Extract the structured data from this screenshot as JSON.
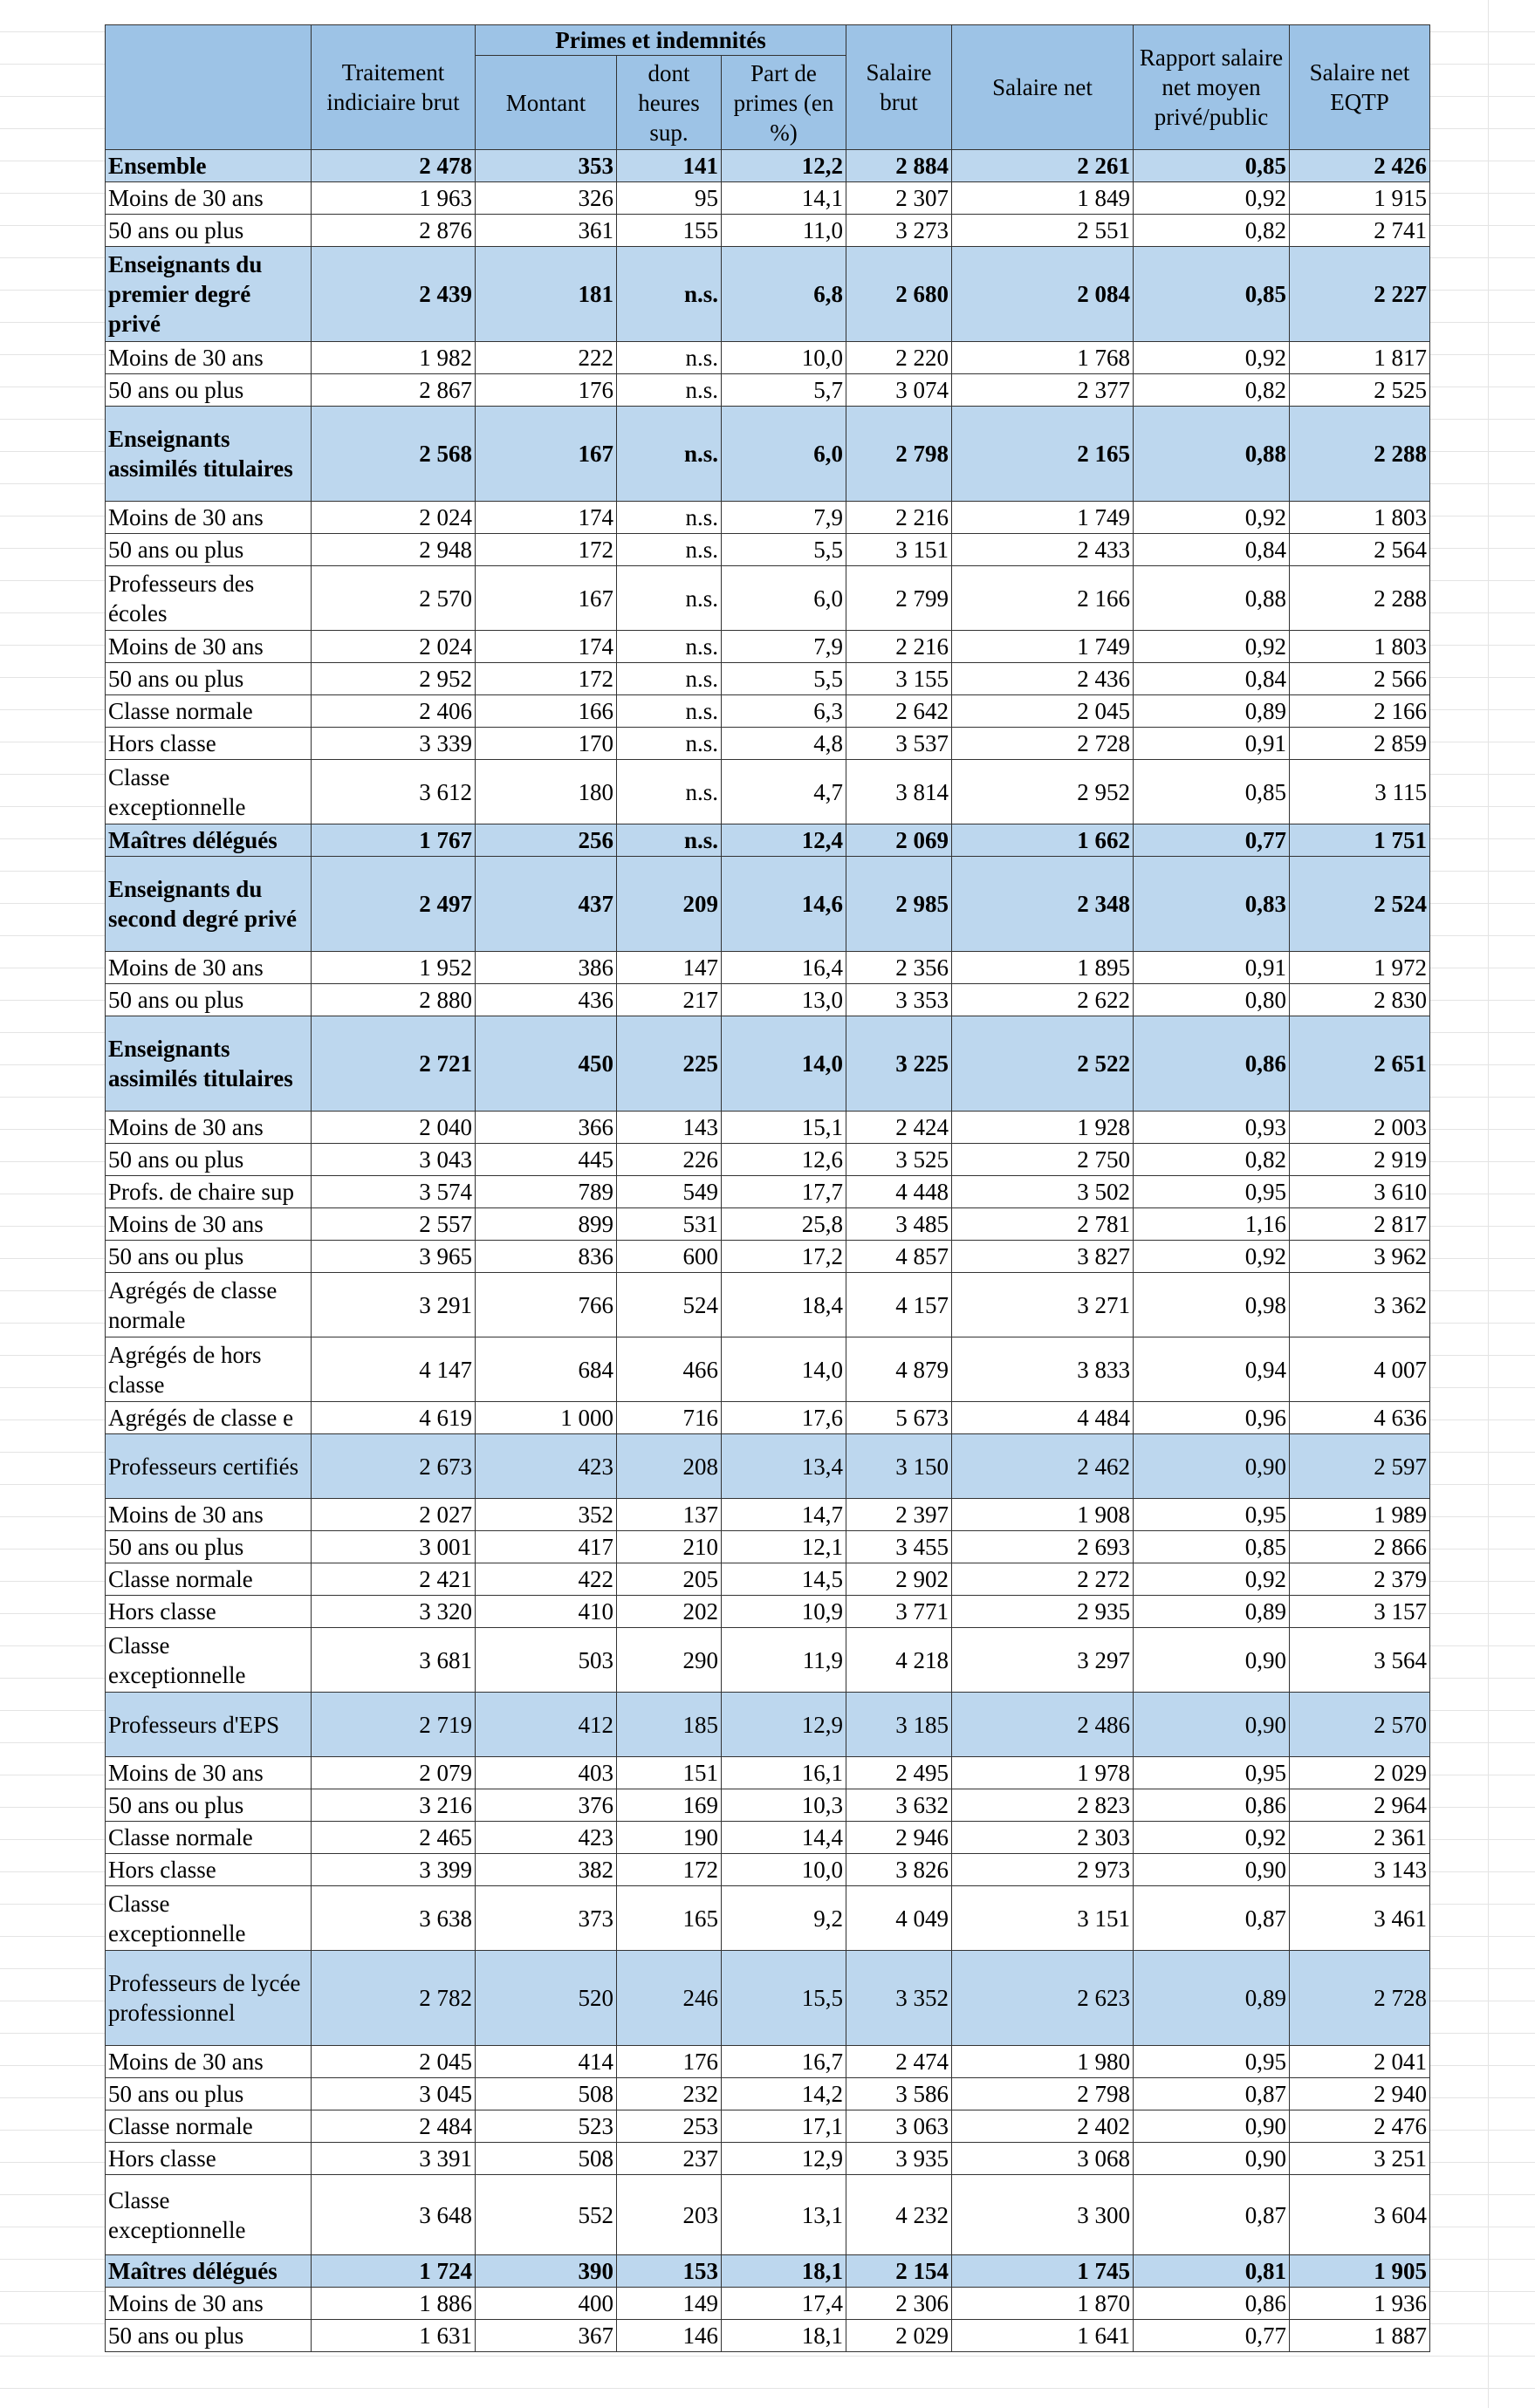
{
  "header": {
    "traitement": "Traitement indiciaire brut",
    "primes": "Primes et indemnités",
    "montant": "Montant",
    "heures": "dont heures sup.",
    "part": "Part de primes (en %)",
    "brut": "Salaire brut",
    "net": "Salaire net",
    "rapport": "Rapport salaire net moyen privé/public",
    "eqtp": "Salaire net EQTP"
  },
  "table": {
    "rows": [
      [
        "Ensemble",
        "2 478",
        "353",
        "141",
        "12,2",
        "2 884",
        "2 261",
        "0,85",
        "2 426"
      ],
      [
        "Moins de 30 ans",
        "1 963",
        "326",
        "95",
        "14,1",
        "2 307",
        "1 849",
        "0,92",
        "1 915"
      ],
      [
        "50 ans ou plus",
        "2 876",
        "361",
        "155",
        "11,0",
        "3 273",
        "2 551",
        "0,82",
        "2 741"
      ],
      [
        "Enseignants du premier degré privé",
        "2 439",
        "181",
        "n.s.",
        "6,8",
        "2 680",
        "2 084",
        "0,85",
        "2 227"
      ],
      [
        "Moins de 30 ans",
        "1 982",
        "222",
        "n.s.",
        "10,0",
        "2 220",
        "1 768",
        "0,92",
        "1 817"
      ],
      [
        "50 ans ou plus",
        "2 867",
        "176",
        "n.s.",
        "5,7",
        "3 074",
        "2 377",
        "0,82",
        "2 525"
      ],
      [
        "Enseignants assimilés titulaires",
        "2 568",
        "167",
        "n.s.",
        "6,0",
        "2 798",
        "2 165",
        "0,88",
        "2 288"
      ],
      [
        "Moins de 30 ans",
        "2 024",
        "174",
        "n.s.",
        "7,9",
        "2 216",
        "1 749",
        "0,92",
        "1 803"
      ],
      [
        "50 ans ou plus",
        "2 948",
        "172",
        "n.s.",
        "5,5",
        "3 151",
        "2 433",
        "0,84",
        "2 564"
      ],
      [
        "Professeurs des écoles",
        "2 570",
        "167",
        "n.s.",
        "6,0",
        "2 799",
        "2 166",
        "0,88",
        "2 288"
      ],
      [
        "Moins de 30 ans",
        "2 024",
        "174",
        "n.s.",
        "7,9",
        "2 216",
        "1 749",
        "0,92",
        "1 803"
      ],
      [
        "50 ans ou plus",
        "2 952",
        "172",
        "n.s.",
        "5,5",
        "3 155",
        "2 436",
        "0,84",
        "2 566"
      ],
      [
        "Classe normale",
        "2 406",
        "166",
        "n.s.",
        "6,3",
        "2 642",
        "2 045",
        "0,89",
        "2 166"
      ],
      [
        "Hors classe",
        "3 339",
        "170",
        "n.s.",
        "4,8",
        "3 537",
        "2 728",
        "0,91",
        "2 859"
      ],
      [
        "Classe exceptionnelle",
        "3 612",
        "180",
        "n.s.",
        "4,7",
        "3 814",
        "2 952",
        "0,85",
        "3 115"
      ],
      [
        "Maîtres délégués",
        "1 767",
        "256",
        "n.s.",
        "12,4",
        "2 069",
        "1 662",
        "0,77",
        "1 751"
      ],
      [
        "Enseignants du second degré privé",
        "2 497",
        "437",
        "209",
        "14,6",
        "2 985",
        "2 348",
        "0,83",
        "2 524"
      ],
      [
        "Moins de 30 ans",
        "1 952",
        "386",
        "147",
        "16,4",
        "2 356",
        "1 895",
        "0,91",
        "1 972"
      ],
      [
        "50 ans ou plus",
        "2 880",
        "436",
        "217",
        "13,0",
        "3 353",
        "2 622",
        "0,80",
        "2 830"
      ],
      [
        "Enseignants assimilés titulaires",
        "2 721",
        "450",
        "225",
        "14,0",
        "3 225",
        "2 522",
        "0,86",
        "2 651"
      ],
      [
        "Moins de 30 ans",
        "2 040",
        "366",
        "143",
        "15,1",
        "2 424",
        "1 928",
        "0,93",
        "2 003"
      ],
      [
        "50 ans ou plus",
        "3 043",
        "445",
        "226",
        "12,6",
        "3 525",
        "2 750",
        "0,82",
        "2 919"
      ],
      [
        "Profs. de chaire sup",
        "3 574",
        "789",
        "549",
        "17,7",
        "4 448",
        "3 502",
        "0,95",
        "3 610"
      ],
      [
        "Moins de 30 ans",
        "2 557",
        "899",
        "531",
        "25,8",
        "3 485",
        "2 781",
        "1,16",
        "2 817"
      ],
      [
        "50 ans ou plus",
        "3 965",
        "836",
        "600",
        "17,2",
        "4 857",
        "3 827",
        "0,92",
        "3 962"
      ],
      [
        "Agrégés de classe normale",
        "3 291",
        "766",
        "524",
        "18,4",
        "4 157",
        "3 271",
        "0,98",
        "3 362"
      ],
      [
        "Agrégés de hors classe",
        "4 147",
        "684",
        "466",
        "14,0",
        "4 879",
        "3 833",
        "0,94",
        "4 007"
      ],
      [
        "Agrégés de classe e",
        "4 619",
        "1 000",
        "716",
        "17,6",
        "5 673",
        "4 484",
        "0,96",
        "4 636"
      ],
      [
        "Professeurs certifiés",
        "2 673",
        "423",
        "208",
        "13,4",
        "3 150",
        "2 462",
        "0,90",
        "2 597"
      ],
      [
        "Moins de 30 ans",
        "2 027",
        "352",
        "137",
        "14,7",
        "2 397",
        "1 908",
        "0,95",
        "1 989"
      ],
      [
        "50 ans ou plus",
        "3 001",
        "417",
        "210",
        "12,1",
        "3 455",
        "2 693",
        "0,85",
        "2 866"
      ],
      [
        "Classe normale",
        "2 421",
        "422",
        "205",
        "14,5",
        "2 902",
        "2 272",
        "0,92",
        "2 379"
      ],
      [
        "Hors classe",
        "3 320",
        "410",
        "202",
        "10,9",
        "3 771",
        "2 935",
        "0,89",
        "3 157"
      ],
      [
        "Classe exceptionnelle",
        "3 681",
        "503",
        "290",
        "11,9",
        "4 218",
        "3 297",
        "0,90",
        "3 564"
      ],
      [
        "Professeurs d'EPS",
        "2 719",
        "412",
        "185",
        "12,9",
        "3 185",
        "2 486",
        "0,90",
        "2 570"
      ],
      [
        "Moins de 30 ans",
        "2 079",
        "403",
        "151",
        "16,1",
        "2 495",
        "1 978",
        "0,95",
        "2 029"
      ],
      [
        "50 ans ou plus",
        "3 216",
        "376",
        "169",
        "10,3",
        "3 632",
        "2 823",
        "0,86",
        "2 964"
      ],
      [
        "Classe normale",
        "2 465",
        "423",
        "190",
        "14,4",
        "2 946",
        "2 303",
        "0,92",
        "2 361"
      ],
      [
        "Hors classe",
        "3 399",
        "382",
        "172",
        "10,0",
        "3 826",
        "2 973",
        "0,90",
        "3 143"
      ],
      [
        "Classe exceptionnelle",
        "3 638",
        "373",
        "165",
        "9,2",
        "4 049",
        "3 151",
        "0,87",
        "3 461"
      ],
      [
        "Professeurs de lycée professionnel",
        "2 782",
        "520",
        "246",
        "15,5",
        "3 352",
        "2 623",
        "0,89",
        "2 728"
      ],
      [
        "Moins de 30 ans",
        "2 045",
        "414",
        "176",
        "16,7",
        "2 474",
        "1 980",
        "0,95",
        "2 041"
      ],
      [
        "50 ans ou plus",
        "3 045",
        "508",
        "232",
        "14,2",
        "3 586",
        "2 798",
        "0,87",
        "2 940"
      ],
      [
        "Classe normale",
        "2 484",
        "523",
        "253",
        "17,1",
        "3 063",
        "2 402",
        "0,90",
        "2 476"
      ],
      [
        "Hors classe",
        "3 391",
        "508",
        "237",
        "12,9",
        "3 935",
        "3 068",
        "0,90",
        "3 251"
      ],
      [
        "Classe exceptionnelle",
        "3 648",
        "552",
        "203",
        "13,1",
        "4 232",
        "3 300",
        "0,87",
        "3 604"
      ],
      [
        "Maîtres délégués",
        "1 724",
        "390",
        "153",
        "18,1",
        "2 154",
        "1 745",
        "0,81",
        "1 905"
      ],
      [
        "Moins de 30 ans",
        "1 886",
        "400",
        "149",
        "17,4",
        "2 306",
        "1 870",
        "0,86",
        "1 936"
      ],
      [
        "50 ans ou plus",
        "1 631",
        "367",
        "146",
        "18,1",
        "2 029",
        "1 641",
        "0,77",
        "1 887"
      ]
    ]
  }
}
